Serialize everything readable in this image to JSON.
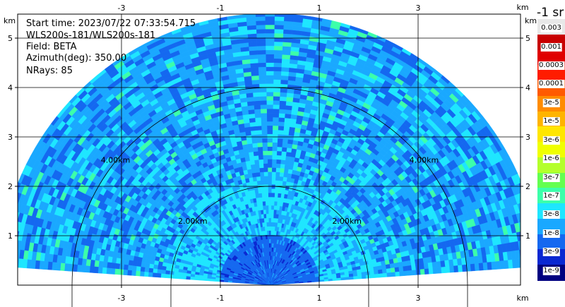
{
  "info": {
    "start_time": "Start time: 2023/07/22 07:33:54.715",
    "instrument": "WLS200s-181/WLS200s-181",
    "field": "Field: BETA",
    "azimuth": "Azimuth(deg): 350.00",
    "nrays": "NRays: 85"
  },
  "chart_data": {
    "type": "heatmap",
    "subtype": "RHI radar scan (half-disk sector)",
    "field": "BETA",
    "azimuth_deg": 350.0,
    "nrays": 85,
    "x_unit": "km",
    "y_unit": "km",
    "xlim": [
      -5.5,
      5.5
    ],
    "ylim": [
      0,
      5.5
    ],
    "x_ticks": [
      -3,
      -1,
      1,
      3
    ],
    "y_ticks": [
      1,
      2,
      3,
      4,
      5
    ],
    "max_range_km": 5.5,
    "elevation_range_deg": [
      4,
      176
    ],
    "range_rings_km": [
      2,
      4
    ],
    "range_ring_labels": [
      "2.00km",
      "4.00km"
    ],
    "grid": true,
    "colorbar": {
      "title": "-1 sr",
      "placement": "right",
      "colors": [
        "#e8e8e8",
        "#c80000",
        "#e00000",
        "#ff1c00",
        "#ff5a00",
        "#ff8c00",
        "#ffb400",
        "#ffe600",
        "#f0ff00",
        "#b4ff2c",
        "#64ff50",
        "#3cffaa",
        "#1ee6ff",
        "#1aa8ff",
        "#1468f0",
        "#0a28d2",
        "#000080"
      ],
      "tick_labels": [
        "0.003",
        "0.001",
        "0.0003",
        "0.0001",
        "3e-5",
        "1e-5",
        "3e-6",
        "1e-6",
        "3e-7",
        "1e-7",
        "3e-8",
        "1e-8",
        "3e-9",
        "1e-9"
      ]
    },
    "field_levels_description": "values mostly between 3e-8 and 1e-7 (light/medium blue) with darker blue near the radar origin"
  },
  "axis_unit_label": "km"
}
